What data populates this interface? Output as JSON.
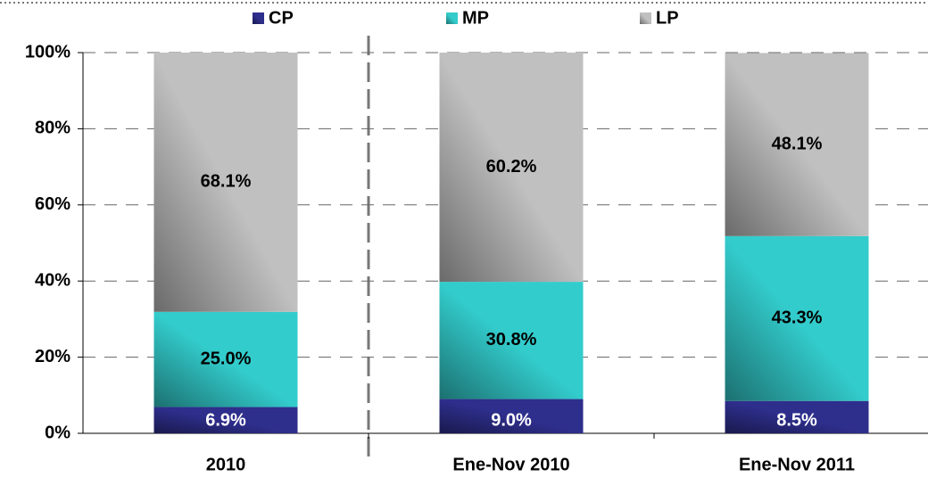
{
  "chart_data": {
    "type": "stacked_bar",
    "categories": [
      "2010",
      "Ene-Nov 2010",
      "Ene-Nov 2011"
    ],
    "series": [
      {
        "name": "CP",
        "color": "#2e2e8c",
        "label_color": "#ffffff",
        "values": [
          6.9,
          9.0,
          8.5
        ],
        "value_labels": [
          "6.9%",
          "9.0%",
          "8.5%"
        ]
      },
      {
        "name": "MP",
        "color": "#33cccc",
        "label_color": "#000000",
        "values": [
          25.0,
          30.8,
          43.3
        ],
        "value_labels": [
          "25.0%",
          "30.8%",
          "43.3%"
        ]
      },
      {
        "name": "LP",
        "color": "#c0c0c0",
        "label_color": "#000000",
        "values": [
          68.1,
          60.2,
          48.1
        ],
        "value_labels": [
          "68.1%",
          "60.2%",
          "48.1%"
        ]
      }
    ],
    "ylim": [
      0,
      100
    ],
    "yticks": [
      {
        "value": 0,
        "label": "0%"
      },
      {
        "value": 20,
        "label": "20%"
      },
      {
        "value": 40,
        "label": "40%"
      },
      {
        "value": 60,
        "label": "60%"
      },
      {
        "value": 80,
        "label": "80%"
      },
      {
        "value": 100,
        "label": "100%"
      }
    ],
    "grid": true,
    "legend": "top"
  }
}
